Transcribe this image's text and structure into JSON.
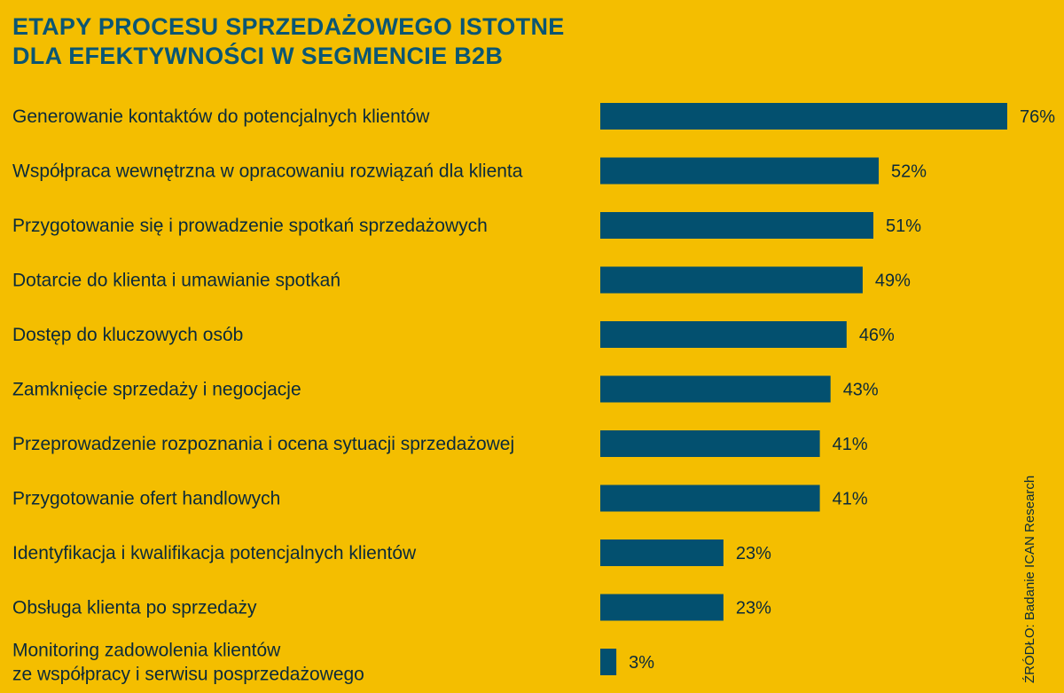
{
  "title": {
    "line1": "ETAPY PROCESU SPRZEDAŻOWEGO ISTOTNE",
    "line2": "DLA EFEKTYWNOŚCI W SEGMENCIE B2B"
  },
  "source": "ŹRÓDŁO: Badanie ICAN Research",
  "colors": {
    "background": "#f4be00",
    "bar": "#03506f",
    "title": "#0b5673"
  },
  "chart_data": {
    "type": "bar",
    "orientation": "horizontal",
    "title": "ETAPY PROCESU SPRZEDAŻOWEGO ISTOTNE DLA EFEKTYWNOŚCI W SEGMENCIE B2B",
    "categories": [
      [
        "Generowanie kontaktów do potencjalnych klientów"
      ],
      [
        "Współpraca wewnętrzna w opracowaniu rozwiązań dla klienta"
      ],
      [
        "Przygotowanie się i prowadzenie spotkań sprzedażowych"
      ],
      [
        "Dotarcie do klienta i umawianie spotkań"
      ],
      [
        "Dostęp do kluczowych osób"
      ],
      [
        "Zamknięcie sprzedaży i negocjacje"
      ],
      [
        "Przeprowadzenie rozpoznania i ocena sytuacji sprzedażowej"
      ],
      [
        "Przygotowanie ofert handlowych"
      ],
      [
        "Identyfikacja i kwalifikacja potencjalnych klientów"
      ],
      [
        "Obsługa klienta po sprzedaży"
      ],
      [
        "Monitoring zadowolenia klientów",
        "ze współpracy i serwisu posprzedażowego"
      ]
    ],
    "values": [
      76,
      52,
      51,
      49,
      46,
      43,
      41,
      41,
      23,
      23,
      3
    ],
    "value_labels": [
      "76%",
      "52%",
      "51%",
      "49%",
      "46%",
      "43%",
      "41%",
      "41%",
      "23%",
      "23%",
      "3%"
    ],
    "unit": "%",
    "xlim": [
      0,
      76
    ],
    "grid": false,
    "legend": "none"
  }
}
